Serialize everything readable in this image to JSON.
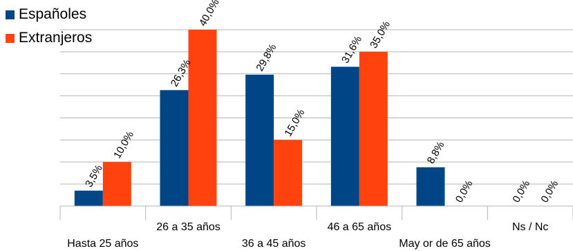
{
  "chart_data": {
    "type": "bar",
    "categories": [
      "Hasta 25 años",
      "26 a 35 años",
      "36 a 45 años",
      "46 a 65 años",
      "May or de 65 años",
      "Ns / Nc"
    ],
    "series": [
      {
        "name": "Españoles",
        "color": "#004586",
        "values": [
          3.5,
          26.3,
          29.8,
          31.6,
          8.8,
          0.0
        ],
        "labels": [
          "3,5%",
          "26,3%",
          "29,8%",
          "31,6%",
          "8,8%",
          "0,0%"
        ]
      },
      {
        "name": "Extranjeros",
        "color": "#ff420e",
        "values": [
          10.0,
          40.0,
          15.0,
          35.0,
          0.0,
          0.0
        ],
        "labels": [
          "10,0%",
          "40,0%",
          "15,0%",
          "35,0%",
          "0,0%",
          "0,0%"
        ]
      }
    ],
    "ylim": [
      0,
      40
    ],
    "grid": true,
    "legend_position": "top-left"
  }
}
